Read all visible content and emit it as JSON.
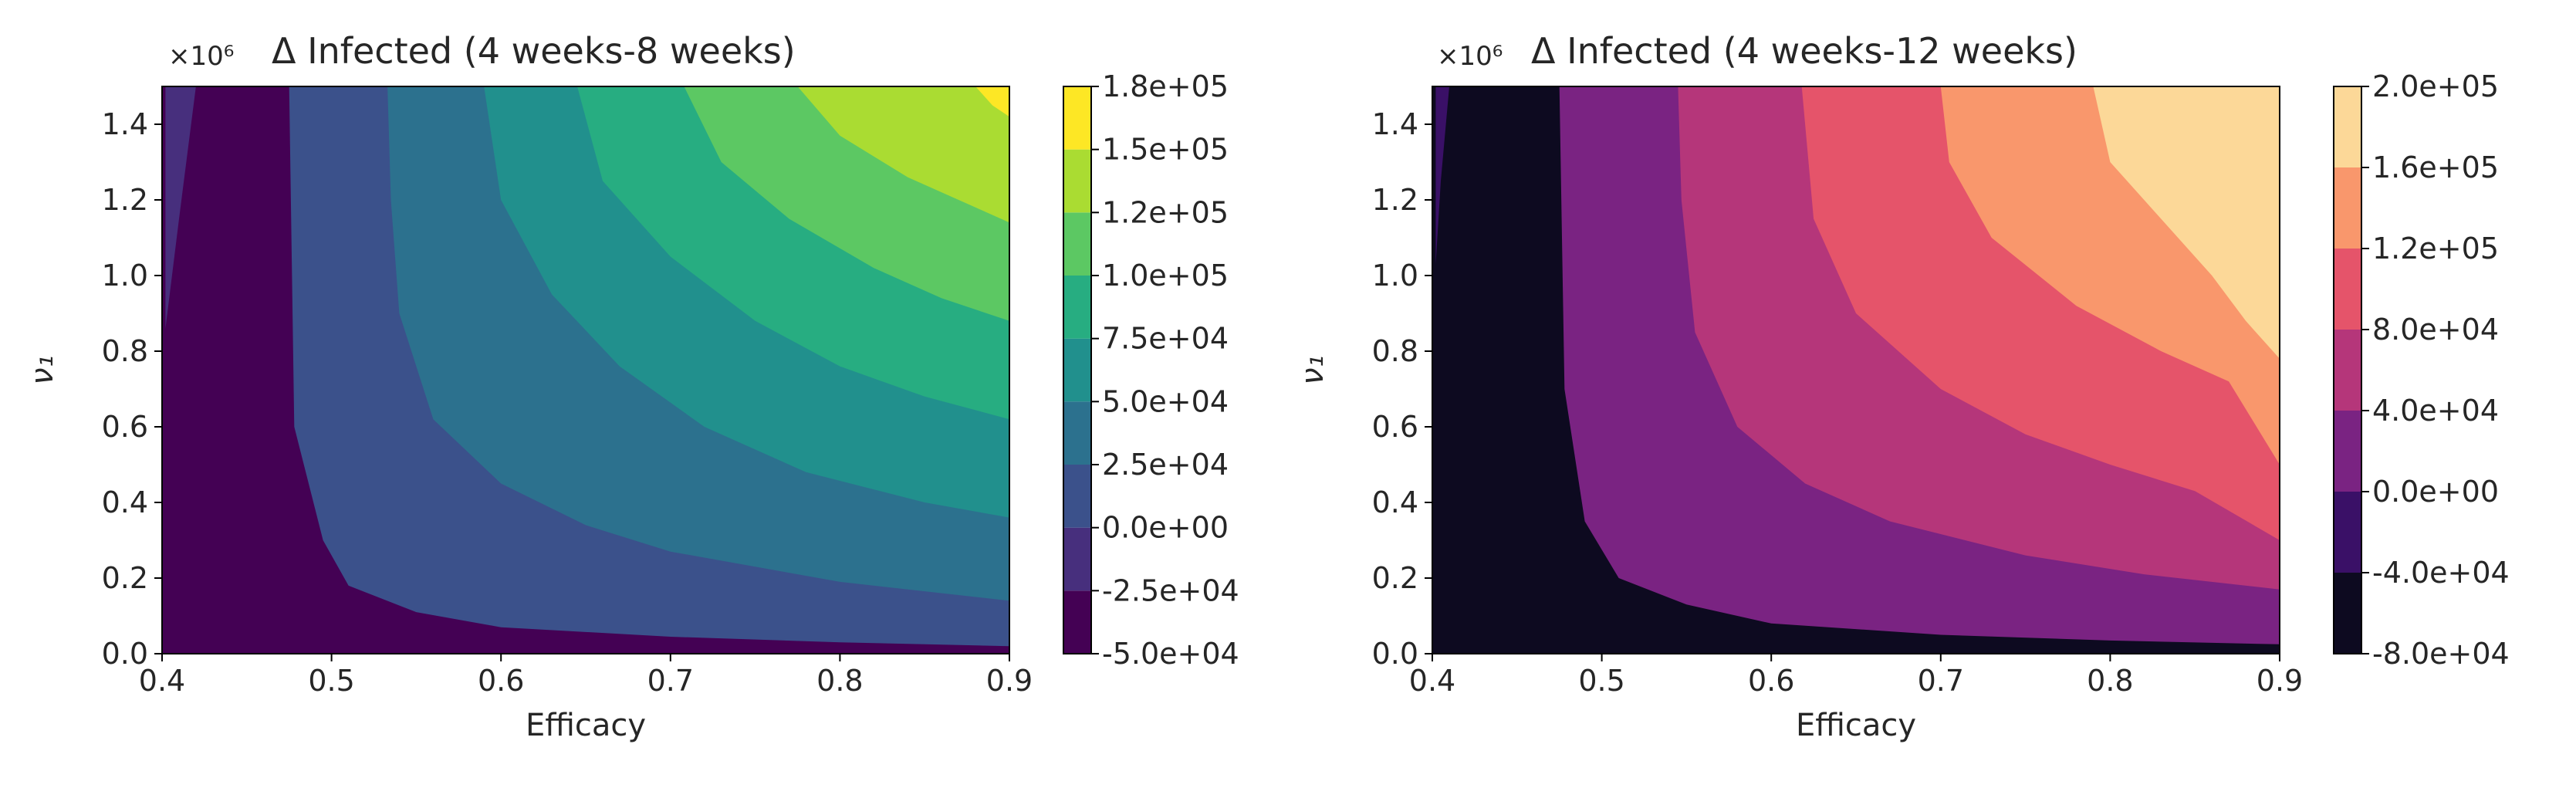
{
  "figure": {
    "title": "",
    "panels": 2
  },
  "chart_data": [
    {
      "type": "heatmap",
      "plot_kind": "filled-contour",
      "title": "Δ  Infected (4 weeks-8 weeks)",
      "scale_note": "×10⁶",
      "xlabel": "Efficacy",
      "ylabel": "ν₁",
      "xlim": [
        0.4,
        0.9
      ],
      "ylim": [
        0.0,
        1.5
      ],
      "xticks": [
        "0.4",
        "0.5",
        "0.6",
        "0.7",
        "0.8",
        "0.9"
      ],
      "yticks": [
        "0.0",
        "0.2",
        "0.4",
        "0.6",
        "0.8",
        "1.0",
        "1.2",
        "1.4"
      ],
      "colormap": "viridis",
      "colorbar": {
        "levels": [
          -50000,
          -25000,
          0,
          25000,
          50000,
          75000,
          100000,
          125000,
          150000,
          175000
        ],
        "tick_labels": [
          "-5.0e+04",
          "-2.5e+04",
          "0.0e+00",
          "2.5e+04",
          "5.0e+04",
          "7.5e+04",
          "1.0e+05",
          "1.2e+05",
          "1.5e+05",
          "1.8e+05"
        ],
        "colors": [
          "#440154",
          "#472f7d",
          "#3b518b",
          "#2c718e",
          "#21908d",
          "#27ad81",
          "#5cc863",
          "#aadc32",
          "#fde725"
        ]
      },
      "boundaries": [
        {
          "level": -25000,
          "points": [
            [
              0.402,
              0.86
            ],
            [
              0.41,
              1.15
            ],
            [
              0.42,
              1.5
            ]
          ]
        },
        {
          "level": 0,
          "points": [
            [
              0.475,
              1.5
            ],
            [
              0.478,
              0.6
            ],
            [
              0.495,
              0.3
            ],
            [
              0.51,
              0.18
            ],
            [
              0.55,
              0.11
            ],
            [
              0.6,
              0.07
            ],
            [
              0.7,
              0.045
            ],
            [
              0.8,
              0.03
            ],
            [
              0.9,
              0.02
            ]
          ]
        },
        {
          "level": 25000,
          "points": [
            [
              0.533,
              1.5
            ],
            [
              0.535,
              1.2
            ],
            [
              0.54,
              0.9
            ],
            [
              0.56,
              0.62
            ],
            [
              0.6,
              0.45
            ],
            [
              0.65,
              0.34
            ],
            [
              0.7,
              0.27
            ],
            [
              0.8,
              0.19
            ],
            [
              0.9,
              0.14
            ]
          ]
        },
        {
          "level": 50000,
          "points": [
            [
              0.59,
              1.5
            ],
            [
              0.6,
              1.2
            ],
            [
              0.63,
              0.95
            ],
            [
              0.67,
              0.76
            ],
            [
              0.72,
              0.6
            ],
            [
              0.78,
              0.48
            ],
            [
              0.85,
              0.4
            ],
            [
              0.9,
              0.36
            ]
          ]
        },
        {
          "level": 75000,
          "points": [
            [
              0.645,
              1.5
            ],
            [
              0.66,
              1.25
            ],
            [
              0.7,
              1.05
            ],
            [
              0.75,
              0.88
            ],
            [
              0.8,
              0.76
            ],
            [
              0.85,
              0.68
            ],
            [
              0.9,
              0.62
            ]
          ]
        },
        {
          "level": 100000,
          "points": [
            [
              0.708,
              1.5
            ],
            [
              0.73,
              1.3
            ],
            [
              0.77,
              1.15
            ],
            [
              0.82,
              1.02
            ],
            [
              0.86,
              0.94
            ],
            [
              0.9,
              0.88
            ]
          ]
        },
        {
          "level": 125000,
          "points": [
            [
              0.775,
              1.5
            ],
            [
              0.8,
              1.37
            ],
            [
              0.84,
              1.26
            ],
            [
              0.88,
              1.18
            ],
            [
              0.9,
              1.14
            ]
          ]
        },
        {
          "level": 150000,
          "points": [
            [
              0.88,
              1.5
            ],
            [
              0.89,
              1.45
            ],
            [
              0.9,
              1.42
            ]
          ]
        }
      ]
    },
    {
      "type": "heatmap",
      "plot_kind": "filled-contour",
      "title": "Δ Infected (4 weeks-12 weeks)",
      "scale_note": "×10⁶",
      "xlabel": "Efficacy",
      "ylabel": "ν₁",
      "xlim": [
        0.4,
        0.9
      ],
      "ylim": [
        0.0,
        1.5
      ],
      "xticks": [
        "0.4",
        "0.5",
        "0.6",
        "0.7",
        "0.8",
        "0.9"
      ],
      "yticks": [
        "0.0",
        "0.2",
        "0.4",
        "0.6",
        "0.8",
        "1.0",
        "1.2",
        "1.4"
      ],
      "colormap": "magma",
      "colorbar": {
        "levels": [
          -80000,
          -40000,
          0,
          40000,
          80000,
          120000,
          160000,
          200000
        ],
        "tick_labels": [
          "-8.0e+04",
          "-4.0e+04",
          "0.0e+00",
          "4.0e+04",
          "8.0e+04",
          "1.2e+05",
          "1.6e+05",
          "2.0e+05"
        ],
        "colors": [
          "#0d0a20",
          "#3a1067",
          "#7a2382",
          "#b5367a",
          "#e5546a",
          "#f9976c",
          "#fcd898"
        ]
      },
      "boundaries": [
        {
          "level": -40000,
          "points": [
            [
              0.402,
              1.03
            ],
            [
              0.405,
              1.25
            ],
            [
              0.41,
              1.5
            ]
          ]
        },
        {
          "level": 0,
          "points": [
            [
              0.475,
              1.5
            ],
            [
              0.478,
              0.7
            ],
            [
              0.49,
              0.35
            ],
            [
              0.51,
              0.2
            ],
            [
              0.55,
              0.13
            ],
            [
              0.6,
              0.08
            ],
            [
              0.7,
              0.05
            ],
            [
              0.8,
              0.035
            ],
            [
              0.9,
              0.025
            ]
          ]
        },
        {
          "level": 40000,
          "points": [
            [
              0.545,
              1.5
            ],
            [
              0.547,
              1.2
            ],
            [
              0.555,
              0.85
            ],
            [
              0.58,
              0.6
            ],
            [
              0.62,
              0.45
            ],
            [
              0.67,
              0.35
            ],
            [
              0.75,
              0.26
            ],
            [
              0.82,
              0.21
            ],
            [
              0.9,
              0.17
            ]
          ]
        },
        {
          "level": 80000,
          "points": [
            [
              0.618,
              1.5
            ],
            [
              0.625,
              1.15
            ],
            [
              0.65,
              0.9
            ],
            [
              0.7,
              0.7
            ],
            [
              0.75,
              0.58
            ],
            [
              0.8,
              0.5
            ],
            [
              0.85,
              0.43
            ],
            [
              0.9,
              0.3
            ]
          ]
        },
        {
          "level": 120000,
          "points": [
            [
              0.7,
              1.5
            ],
            [
              0.705,
              1.3
            ],
            [
              0.73,
              1.1
            ],
            [
              0.78,
              0.92
            ],
            [
              0.83,
              0.8
            ],
            [
              0.87,
              0.72
            ],
            [
              0.9,
              0.5
            ]
          ]
        },
        {
          "level": 160000,
          "points": [
            [
              0.79,
              1.5
            ],
            [
              0.8,
              1.3
            ],
            [
              0.83,
              1.15
            ],
            [
              0.86,
              1.0
            ],
            [
              0.88,
              0.88
            ],
            [
              0.9,
              0.78
            ]
          ]
        }
      ]
    }
  ]
}
